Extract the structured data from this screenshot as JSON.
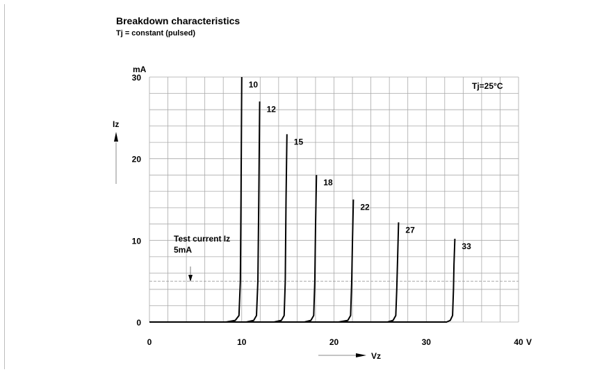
{
  "chart_data": {
    "type": "line",
    "title": "Breakdown characteristics",
    "subtitle": "Tj = constant (pulsed)",
    "xlabel": "Vz",
    "ylabel": "Iz",
    "x_unit": "V",
    "y_unit": "mA",
    "xlim": [
      0,
      40
    ],
    "ylim": [
      0,
      30
    ],
    "x_ticks": [
      "0",
      "10",
      "20",
      "30",
      "40"
    ],
    "y_ticks": [
      "0",
      "10",
      "20",
      "30"
    ],
    "grid": true,
    "annotation_temp": "Tj=25°C",
    "annotation_test_line1": "Test current Iz",
    "annotation_test_line2": "5mA",
    "test_current": 5,
    "series": [
      {
        "name": "10",
        "points": [
          [
            0,
            0
          ],
          [
            8.3,
            0
          ],
          [
            9.3,
            0.2
          ],
          [
            9.7,
            0.8
          ],
          [
            9.85,
            5
          ],
          [
            9.92,
            15
          ],
          [
            10.0,
            30
          ]
        ]
      },
      {
        "name": "12",
        "points": [
          [
            0,
            0
          ],
          [
            10.5,
            0
          ],
          [
            11.3,
            0.2
          ],
          [
            11.6,
            0.8
          ],
          [
            11.75,
            5
          ],
          [
            11.85,
            15
          ],
          [
            11.95,
            27
          ]
        ]
      },
      {
        "name": "15",
        "points": [
          [
            0,
            0
          ],
          [
            13.5,
            0
          ],
          [
            14.3,
            0.2
          ],
          [
            14.6,
            0.8
          ],
          [
            14.72,
            5
          ],
          [
            14.8,
            15
          ],
          [
            14.9,
            23
          ]
        ]
      },
      {
        "name": "18",
        "points": [
          [
            0,
            0
          ],
          [
            16.8,
            0
          ],
          [
            17.5,
            0.2
          ],
          [
            17.8,
            0.8
          ],
          [
            17.92,
            5
          ],
          [
            18.0,
            12
          ],
          [
            18.1,
            18
          ]
        ]
      },
      {
        "name": "22",
        "points": [
          [
            0,
            0
          ],
          [
            20.5,
            0
          ],
          [
            21.5,
            0.2
          ],
          [
            21.8,
            0.8
          ],
          [
            21.92,
            5
          ],
          [
            22.0,
            10
          ],
          [
            22.1,
            15
          ]
        ]
      },
      {
        "name": "27",
        "points": [
          [
            0,
            0
          ],
          [
            25.8,
            0
          ],
          [
            26.4,
            0.2
          ],
          [
            26.7,
            0.8
          ],
          [
            26.8,
            4
          ],
          [
            26.9,
            8
          ],
          [
            27.0,
            12.2
          ]
        ]
      },
      {
        "name": "33",
        "points": [
          [
            0,
            0
          ],
          [
            32.2,
            0
          ],
          [
            32.6,
            0.2
          ],
          [
            32.85,
            0.8
          ],
          [
            32.95,
            4
          ],
          [
            33.0,
            7
          ],
          [
            33.1,
            10.2
          ]
        ]
      }
    ]
  }
}
